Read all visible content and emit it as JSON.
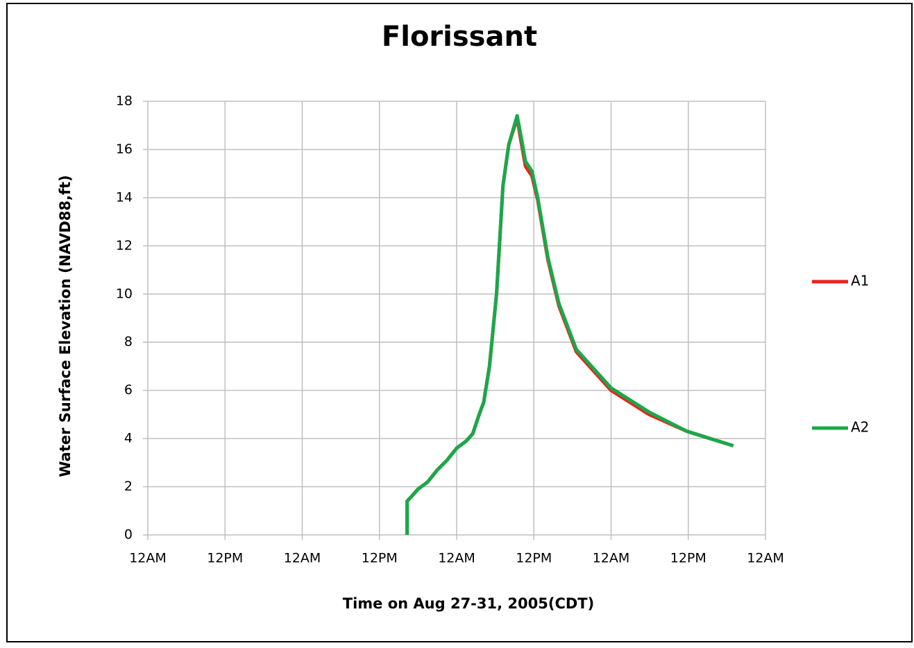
{
  "chart_data": {
    "type": "line",
    "title": "Florissant",
    "xlabel": "Time  on Aug 27-31, 2005(CDT)",
    "ylabel": "Water Surface Elevation (NAVD88,ft)",
    "xlim": [
      0,
      96
    ],
    "xticks": [
      {
        "value": 0,
        "label": "12AM"
      },
      {
        "value": 12,
        "label": "12PM"
      },
      {
        "value": 24,
        "label": "12AM"
      },
      {
        "value": 36,
        "label": "12PM"
      },
      {
        "value": 48,
        "label": "12AM"
      },
      {
        "value": 60,
        "label": "12PM"
      },
      {
        "value": 72,
        "label": "12AM"
      },
      {
        "value": 84,
        "label": "12PM"
      },
      {
        "value": 96,
        "label": "12AM"
      }
    ],
    "ylim": [
      0,
      18
    ],
    "yticks": [
      0,
      2,
      4,
      6,
      8,
      10,
      12,
      14,
      16,
      18
    ],
    "grid": true,
    "legend": "right",
    "series": [
      {
        "name": "A1",
        "color": "#e8231c",
        "x": [
          40.3,
          40.3,
          41,
          42,
          43.5,
          45,
          46.5,
          48,
          49.5,
          50.5,
          51.5,
          52.2,
          53.1,
          54.2,
          55.2,
          56.1,
          57.4,
          58.1,
          58.7,
          59.7,
          60.6,
          62.2,
          63.9,
          66.6,
          72,
          77.9,
          83.8,
          91
        ],
        "values": [
          0,
          1.4,
          1.6,
          1.9,
          2.2,
          2.7,
          3.1,
          3.6,
          3.9,
          4.2,
          5.0,
          5.5,
          7.0,
          10.0,
          14.5,
          16.2,
          17.3,
          16.2,
          15.3,
          14.9,
          13.9,
          11.4,
          9.5,
          7.6,
          6.0,
          5.0,
          4.3,
          3.7
        ]
      },
      {
        "name": "A2",
        "color": "#1aa84a",
        "x": [
          40.3,
          40.3,
          41,
          42,
          43.5,
          45,
          46.5,
          48,
          49.5,
          50.5,
          51.5,
          52.2,
          53.1,
          54.2,
          55.2,
          56.1,
          57.4,
          58.1,
          58.7,
          59.7,
          60.6,
          62.2,
          63.9,
          66.6,
          72,
          77.9,
          83.8,
          91
        ],
        "values": [
          0,
          1.4,
          1.6,
          1.9,
          2.2,
          2.7,
          3.1,
          3.6,
          3.9,
          4.2,
          5.0,
          5.5,
          7.0,
          10.0,
          14.5,
          16.2,
          17.4,
          16.4,
          15.5,
          15.1,
          14.0,
          11.5,
          9.6,
          7.7,
          6.1,
          5.1,
          4.3,
          3.7
        ]
      }
    ]
  }
}
